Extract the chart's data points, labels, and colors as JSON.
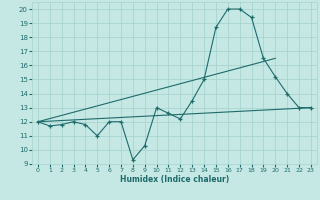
{
  "xlabel": "Humidex (Indice chaleur)",
  "background_color": "#c5e8e4",
  "grid_color": "#a8d4cf",
  "line_color": "#1e6b6b",
  "xlim": [
    -0.5,
    23.5
  ],
  "ylim": [
    9,
    20.5
  ],
  "xticks": [
    0,
    1,
    2,
    3,
    4,
    5,
    6,
    7,
    8,
    9,
    10,
    11,
    12,
    13,
    14,
    15,
    16,
    17,
    18,
    19,
    20,
    21,
    22,
    23
  ],
  "yticks": [
    9,
    10,
    11,
    12,
    13,
    14,
    15,
    16,
    17,
    18,
    19,
    20
  ],
  "series1_x": [
    0,
    1,
    2,
    3,
    4,
    5,
    6,
    7,
    8,
    9,
    10,
    11,
    12,
    13,
    14,
    15,
    16,
    17,
    18,
    19,
    20,
    21,
    22,
    23
  ],
  "series1_y": [
    12.0,
    11.7,
    11.8,
    12.0,
    11.8,
    11.0,
    12.0,
    12.0,
    9.3,
    10.3,
    13.0,
    12.6,
    12.2,
    13.5,
    15.0,
    18.7,
    20.0,
    20.0,
    19.4,
    16.5,
    15.2,
    14.0,
    13.0,
    13.0
  ],
  "series2_x": [
    0,
    20
  ],
  "series2_y": [
    12.0,
    16.5
  ],
  "series3_x": [
    0,
    23
  ],
  "series3_y": [
    12.0,
    13.0
  ]
}
